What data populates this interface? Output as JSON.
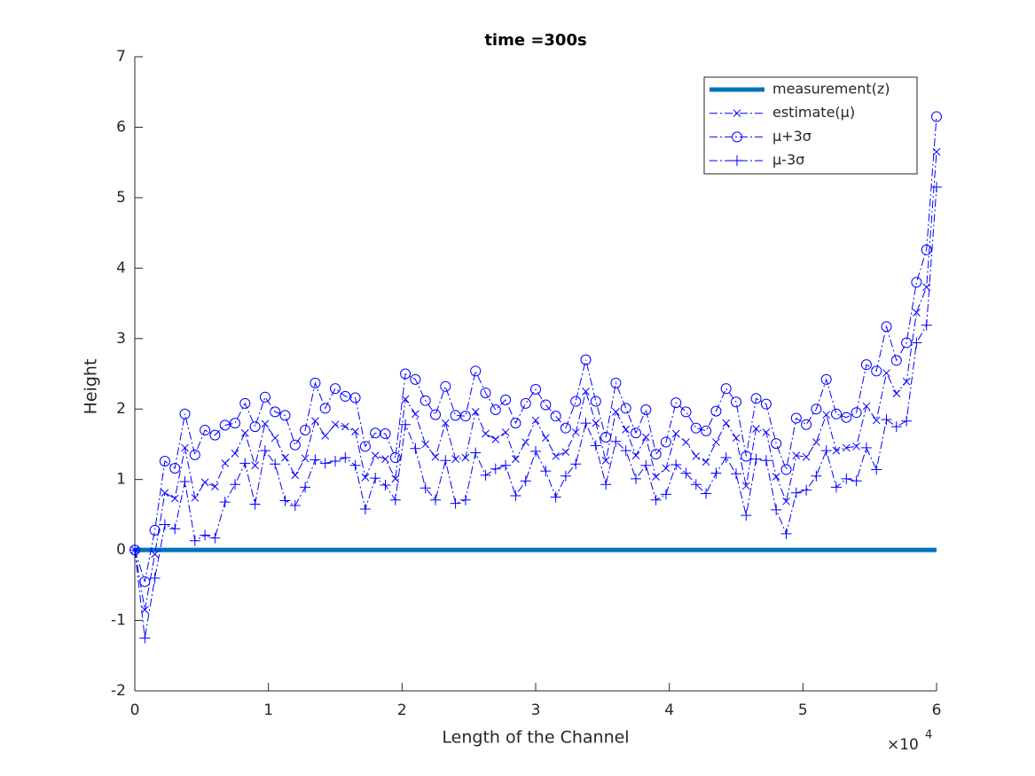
{
  "chart_data": {
    "type": "line",
    "title": "time =300s",
    "xlabel": "Length of the Channel",
    "ylabel": "Height",
    "x_multiplier": {
      "base": "×10",
      "exponent": "4"
    },
    "xlim": [
      0,
      60000
    ],
    "ylim": [
      -2,
      7
    ],
    "xticks": [
      {
        "value": 0,
        "label": "0"
      },
      {
        "value": 10000,
        "label": "1"
      },
      {
        "value": 20000,
        "label": "2"
      },
      {
        "value": 30000,
        "label": "3"
      },
      {
        "value": 40000,
        "label": "4"
      },
      {
        "value": 50000,
        "label": "5"
      },
      {
        "value": 60000,
        "label": "6"
      }
    ],
    "yticks": [
      -2,
      -1,
      0,
      1,
      2,
      3,
      4,
      5,
      6,
      7
    ],
    "grid": false,
    "legend": "top-right",
    "x": [
      0,
      750,
      1500,
      2250,
      3000,
      3750,
      4500,
      5250,
      6000,
      6750,
      7500,
      8250,
      9000,
      9750,
      10500,
      11250,
      12000,
      12750,
      13500,
      14250,
      15000,
      15750,
      16500,
      17250,
      18000,
      18750,
      19500,
      20250,
      21000,
      21750,
      22500,
      23250,
      24000,
      24750,
      25500,
      26250,
      27000,
      27750,
      28500,
      29250,
      30000,
      30750,
      31500,
      32250,
      33000,
      33750,
      34500,
      35250,
      36000,
      36750,
      37500,
      38250,
      39000,
      39750,
      40500,
      41250,
      42000,
      42750,
      43500,
      44250,
      45000,
      45750,
      46500,
      47250,
      48000,
      48750,
      49500,
      50250,
      51000,
      51750,
      52500,
      53250,
      54000,
      54750,
      55500,
      56250,
      57000,
      57750,
      58500,
      59250,
      60000
    ],
    "series": [
      {
        "name": "measurement(z)",
        "color": "#0072bd",
        "line_style": "-",
        "line_width": 5,
        "marker": "none",
        "values": [
          0,
          0,
          0,
          0,
          0,
          0,
          0,
          0,
          0,
          0,
          0,
          0,
          0,
          0,
          0,
          0,
          0,
          0,
          0,
          0,
          0,
          0,
          0,
          0,
          0,
          0,
          0,
          0,
          0,
          0,
          0,
          0,
          0,
          0,
          0,
          0,
          0,
          0,
          0,
          0,
          0,
          0,
          0,
          0,
          0,
          0,
          0,
          0,
          0,
          0,
          0,
          0,
          0,
          0,
          0,
          0,
          0,
          0,
          0,
          0,
          0,
          0,
          0,
          0,
          0,
          0,
          0,
          0,
          0,
          0,
          0,
          0,
          0,
          0,
          0,
          0,
          0,
          0,
          0,
          0,
          0
        ]
      },
      {
        "name": "estimate(μ)",
        "color": "#0000ff",
        "line_style": "-.",
        "line_width": 1,
        "marker": "x",
        "values": [
          0,
          -0.85,
          -0.06,
          0.81,
          0.73,
          1.45,
          0.74,
          0.96,
          0.9,
          1.23,
          1.37,
          1.66,
          1.2,
          1.79,
          1.59,
          1.31,
          1.06,
          1.3,
          1.83,
          1.62,
          1.78,
          1.75,
          1.68,
          1.03,
          1.34,
          1.29,
          1.01,
          2.14,
          1.93,
          1.5,
          1.32,
          1.8,
          1.29,
          1.31,
          1.96,
          1.65,
          1.57,
          1.67,
          1.29,
          1.53,
          1.84,
          1.59,
          1.33,
          1.39,
          1.67,
          2.25,
          1.8,
          1.27,
          1.96,
          1.71,
          1.34,
          1.6,
          1.04,
          1.16,
          1.65,
          1.53,
          1.33,
          1.25,
          1.53,
          1.8,
          1.59,
          0.91,
          1.72,
          1.67,
          1.04,
          0.69,
          1.34,
          1.32,
          1.53,
          1.92,
          1.41,
          1.45,
          1.47,
          2.04,
          1.84,
          2.51,
          2.22,
          2.39,
          3.37,
          3.73,
          5.65
        ]
      },
      {
        "name": "μ+3σ",
        "color": "#0000ff",
        "line_style": "-.",
        "line_width": 1,
        "marker": "o",
        "values": [
          0,
          -0.45,
          0.28,
          1.26,
          1.16,
          1.93,
          1.35,
          1.7,
          1.63,
          1.77,
          1.8,
          2.08,
          1.75,
          2.17,
          1.96,
          1.91,
          1.49,
          1.7,
          2.37,
          2.01,
          2.29,
          2.18,
          2.16,
          1.47,
          1.66,
          1.65,
          1.31,
          2.5,
          2.42,
          2.12,
          1.92,
          2.32,
          1.91,
          1.9,
          2.54,
          2.23,
          1.99,
          2.13,
          1.8,
          2.08,
          2.28,
          2.06,
          1.9,
          1.73,
          2.11,
          2.7,
          2.11,
          1.6,
          2.37,
          2.01,
          1.66,
          1.99,
          1.36,
          1.53,
          2.09,
          1.96,
          1.73,
          1.69,
          1.97,
          2.29,
          2.1,
          1.33,
          2.15,
          2.07,
          1.51,
          1.14,
          1.87,
          1.78,
          2.0,
          2.42,
          1.93,
          1.88,
          1.95,
          2.63,
          2.54,
          3.17,
          2.69,
          2.94,
          3.8,
          4.26,
          6.15
        ]
      },
      {
        "name": "μ-3σ",
        "color": "#0000ff",
        "line_style": "-.",
        "line_width": 1,
        "marker": "+",
        "values": [
          0,
          -1.25,
          -0.4,
          0.36,
          0.3,
          0.97,
          0.13,
          0.21,
          0.17,
          0.68,
          0.93,
          1.23,
          0.65,
          1.41,
          1.22,
          0.7,
          0.63,
          0.89,
          1.28,
          1.23,
          1.26,
          1.31,
          1.2,
          0.58,
          1.02,
          0.92,
          0.71,
          1.78,
          1.44,
          0.88,
          0.71,
          1.27,
          0.66,
          0.71,
          1.38,
          1.06,
          1.15,
          1.2,
          0.77,
          0.98,
          1.4,
          1.12,
          0.75,
          1.05,
          1.22,
          1.8,
          1.48,
          0.93,
          1.54,
          1.41,
          1.01,
          1.2,
          0.71,
          0.79,
          1.21,
          1.09,
          0.93,
          0.8,
          1.09,
          1.31,
          1.08,
          0.49,
          1.29,
          1.27,
          0.57,
          0.23,
          0.81,
          0.85,
          1.05,
          1.41,
          0.89,
          1.01,
          0.98,
          1.45,
          1.14,
          1.85,
          1.75,
          1.83,
          2.94,
          3.19,
          5.15
        ]
      }
    ]
  }
}
